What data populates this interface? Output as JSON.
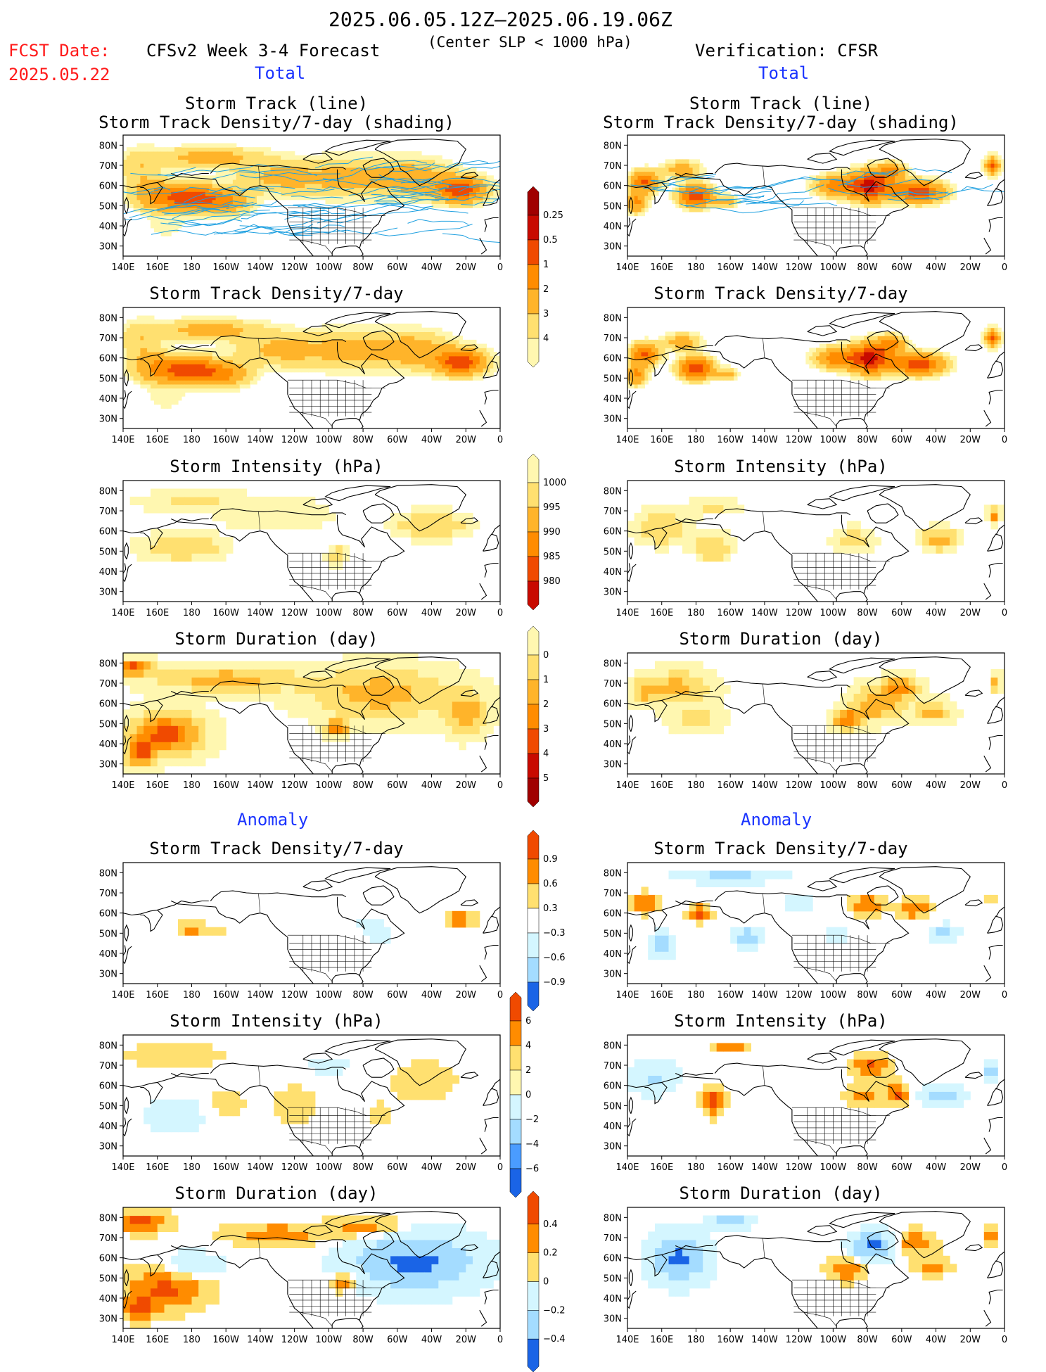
{
  "header": {
    "date_range": "2025.06.05.12Z–2025.06.19.06Z",
    "fcst_label": "FCST Date:",
    "fcst_date": "2025.05.22",
    "model_title": "CFSv2 Week 3-4 Forecast",
    "criterion": "(Center SLP < 1000 hPa)",
    "verification": "Verification: CFSR"
  },
  "sections": {
    "total_left": "Total",
    "total_right": "Total",
    "anomaly_left": "Anomaly",
    "anomaly_right": "Anomaly"
  },
  "panel_titles": {
    "track": "Storm Track (line)",
    "track_density_shading": "Storm Track Density/7-day (shading)",
    "density": "Storm Track Density/7-day",
    "intensity": "Storm Intensity (hPa)",
    "duration": "Storm Duration (day)"
  },
  "axes": {
    "lon_ticks": [
      "140E",
      "160E",
      "180",
      "160W",
      "140W",
      "120W",
      "100W",
      "80W",
      "60W",
      "40W",
      "20W",
      "0"
    ],
    "lat_ticks": [
      "80N",
      "70N",
      "60N",
      "50N",
      "40N",
      "30N"
    ]
  },
  "colorbars": {
    "density": [
      "0.25",
      "0.5",
      "1",
      "2",
      "3",
      "4"
    ],
    "intensity": [
      "1000",
      "995",
      "990",
      "985",
      "980"
    ],
    "duration": [
      "0",
      "1",
      "2",
      "3",
      "4",
      "5"
    ],
    "density_anom": [
      "0.9",
      "0.6",
      "0.3",
      "−0.3",
      "−0.6",
      "−0.9"
    ],
    "intensity_anom": [
      "6",
      "4",
      "2",
      "0",
      "−2",
      "−4",
      "−6"
    ],
    "duration_anom": [
      "0.4",
      "0.2",
      "0",
      "−0.2",
      "−0.4"
    ]
  },
  "colors": {
    "warm": [
      "#fff7b0",
      "#ffe070",
      "#ffb42a",
      "#ff8c00",
      "#f04a00",
      "#c80a00",
      "#a00000"
    ],
    "cool": [
      "#d4f6ff",
      "#a4dcff",
      "#4a9cff",
      "#1a64e6"
    ],
    "track_line": "#1fa0e0",
    "header_red": "#ff1a1a",
    "header_blue": "#1a33ff"
  }
}
